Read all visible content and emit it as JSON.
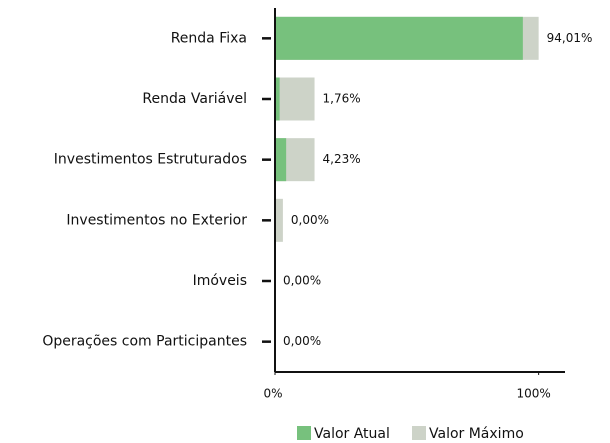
{
  "chart_data": {
    "type": "bar",
    "orientation": "horizontal",
    "categories": [
      "Renda Fixa",
      "Renda Variável",
      "Investimentos Estruturados",
      "Investimentos no Exterior",
      "Imóveis",
      "Operações com Participantes"
    ],
    "series": [
      {
        "name": "Valor Atual",
        "color": "#77c17d",
        "values": [
          94.01,
          1.76,
          4.23,
          0,
          0,
          0
        ],
        "value_labels": [
          "94,01%",
          "1,76%",
          "4,23%",
          "0,00%",
          "0,00%",
          "0,00%"
        ]
      },
      {
        "name": "Valor Máximo",
        "color": "#cdd3c8",
        "values": [
          100,
          15,
          15,
          3,
          0,
          0
        ]
      }
    ],
    "xlim": [
      0,
      110
    ],
    "xticks": [
      {
        "value": 0,
        "label": "0%"
      },
      {
        "value": 100,
        "label": "100%"
      }
    ],
    "legend": "bottom"
  }
}
